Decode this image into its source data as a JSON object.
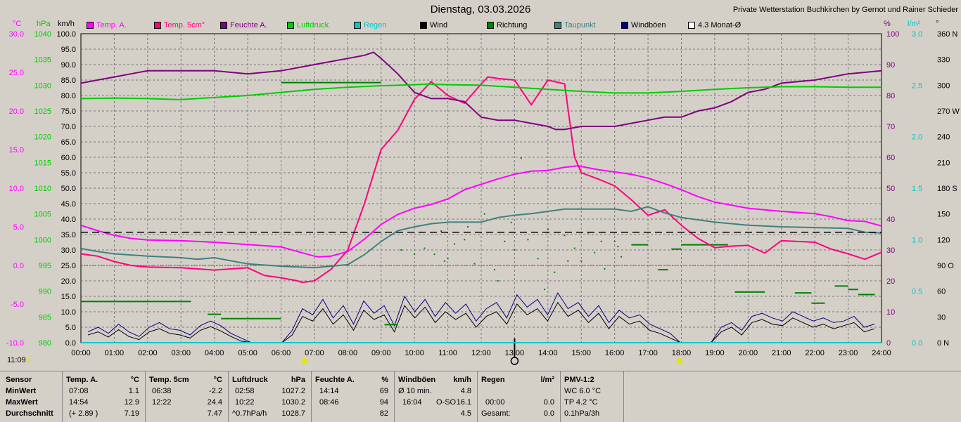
{
  "header": {
    "title": "Dienstag, 03.03.2026",
    "credit": "Private Wetterstation Buchkirchen by Gernot und Rainer Schieder",
    "time_now": "11:09"
  },
  "legend": [
    {
      "label": "Temp. A.",
      "color": "#ff00ff"
    },
    {
      "label": "Temp. 5cm°",
      "color": "#ff0080"
    },
    {
      "label": "Feuchte A.",
      "color": "#800080"
    },
    {
      "label": "Luftdruck",
      "color": "#00cc00"
    },
    {
      "label": "Regen",
      "color": "#00c8c8"
    },
    {
      "label": "Wind",
      "color": "#000000"
    },
    {
      "label": "Richtung",
      "color": "#008000"
    },
    {
      "label": "Taupunkt",
      "color": "#408080"
    },
    {
      "label": "Windböen",
      "color": "#000080"
    },
    {
      "label": "4.3 Monat-Ø",
      "color": "#ffffff"
    }
  ],
  "axes": {
    "temp": {
      "unit": "°C",
      "ticks": [
        "30.0",
        "25.0",
        "20.0",
        "15.0",
        "10.0",
        "5.0",
        "0.0",
        "-5.0",
        "-10.0"
      ],
      "color": "#ff00ff"
    },
    "pressure": {
      "unit": "hPa",
      "ticks": [
        "1040",
        "1035",
        "1030",
        "1025",
        "1020",
        "1015",
        "1010",
        "1005",
        "1000",
        "995",
        "990",
        "985",
        "980"
      ],
      "color": "#00cc00"
    },
    "wind": {
      "unit": "km/h",
      "ticks": [
        "100.0",
        "95.0",
        "90.0",
        "85.0",
        "80.0",
        "75.0",
        "70.0",
        "65.0",
        "60.0",
        "55.0",
        "50.0",
        "45.0",
        "40.0",
        "35.0",
        "30.0",
        "25.0",
        "20.0",
        "15.0",
        "10.0",
        "5.0",
        "0.0"
      ]
    },
    "humidity": {
      "unit": "%",
      "ticks": [
        "100",
        "90",
        "80",
        "70",
        "60",
        "50",
        "40",
        "30",
        "20",
        "10",
        "0"
      ],
      "color": "#800080"
    },
    "rain": {
      "unit": "l/m²",
      "ticks": [
        "3.0",
        "2.5",
        "2.0",
        "1.5",
        "1.0",
        "0.5",
        "0.0"
      ],
      "color": "#00c8c8"
    },
    "direction": {
      "unit": "°",
      "ticks": [
        "360 N",
        "330",
        "300",
        "270 W",
        "240",
        "210",
        "180 S",
        "150",
        "120",
        "90 O",
        "60",
        "30",
        "0 N"
      ]
    },
    "time": [
      "00:00",
      "01:00",
      "02:00",
      "03:00",
      "04:00",
      "05:00",
      "06:00",
      "07:00",
      "08:00",
      "09:00",
      "10:00",
      "11:00",
      "12:00",
      "13:00",
      "14:00",
      "15:00",
      "16:00",
      "17:00",
      "18:00",
      "19:00",
      "20:00",
      "21:00",
      "22:00",
      "23:00",
      "24:00"
    ]
  },
  "chart_data": {
    "type": "line",
    "x_unit": "hour",
    "series": [
      {
        "name": "Temp. A.",
        "axis": "temp",
        "color": "#ff00ff",
        "x": [
          0,
          0.5,
          1,
          1.5,
          2,
          3,
          4,
          5,
          6,
          7,
          7.13,
          7.5,
          8,
          8.5,
          9,
          9.5,
          10,
          10.5,
          11,
          11.5,
          12,
          12.5,
          13,
          13.5,
          14,
          14.5,
          14.9,
          15.5,
          16,
          16.5,
          17,
          17.5,
          18,
          18.5,
          19,
          19.5,
          20,
          21,
          22,
          22.5,
          23,
          23.5,
          24
        ],
        "y": [
          5.2,
          4.5,
          3.9,
          3.5,
          3.3,
          3.2,
          3.0,
          2.7,
          2.4,
          1.2,
          1.1,
          1.2,
          1.8,
          3.4,
          5.3,
          6.6,
          7.4,
          7.9,
          8.6,
          9.8,
          10.5,
          11.2,
          11.8,
          12.2,
          12.3,
          12.7,
          12.9,
          12.4,
          12.1,
          11.8,
          11.3,
          10.6,
          9.8,
          8.9,
          8.2,
          7.8,
          7.4,
          7.0,
          6.7,
          6.3,
          5.8,
          5.7,
          5.1
        ]
      },
      {
        "name": "Temp. 5cm°",
        "axis": "temp",
        "color": "#ff0080",
        "x": [
          0,
          0.5,
          1,
          1.5,
          2,
          3,
          4,
          5,
          5.5,
          6,
          6.5,
          6.63,
          7,
          7.5,
          8,
          8.5,
          9,
          9.5,
          10,
          10.5,
          11,
          11.5,
          12,
          12.2,
          12.5,
          13,
          13.5,
          14,
          14.5,
          14.8,
          15,
          15.5,
          16,
          16.5,
          17,
          17.5,
          18,
          18.5,
          19,
          19.5,
          20,
          20.5,
          21,
          22,
          22.5,
          23,
          23.5,
          24
        ],
        "y": [
          1.5,
          1.2,
          0.5,
          0,
          -0.2,
          -0.3,
          -0.6,
          -0.3,
          -1.3,
          -1.6,
          -2.0,
          -2.2,
          -2.0,
          -0.5,
          2.0,
          8.0,
          15.0,
          17.5,
          21.5,
          23.8,
          22.0,
          21.0,
          23.5,
          24.4,
          24.2,
          24.0,
          20.8,
          24.0,
          23.5,
          14.0,
          12.0,
          11.2,
          10.3,
          8.5,
          6.5,
          7.2,
          5.2,
          3.5,
          2.3,
          2.5,
          2.6,
          1.6,
          3.2,
          3.0,
          2.1,
          1.5,
          0.8,
          1.7
        ]
      },
      {
        "name": "Feuchte A.",
        "axis": "humidity",
        "color": "#800080",
        "x": [
          0,
          0.5,
          1,
          1.5,
          2,
          3,
          4,
          5,
          6,
          7,
          8,
          8.5,
          8.77,
          9,
          9.5,
          10,
          10.5,
          11,
          11.5,
          12,
          12.5,
          13,
          13.5,
          14,
          14.23,
          14.5,
          15,
          15.5,
          16,
          16.5,
          17,
          17.5,
          18,
          18.5,
          19,
          19.5,
          20,
          20.5,
          21,
          22,
          23,
          24
        ],
        "y": [
          84,
          85,
          86,
          87,
          88,
          88,
          88,
          87,
          88,
          90,
          92,
          93,
          94,
          92,
          87,
          81,
          79,
          79,
          78,
          73,
          72,
          72,
          71,
          70,
          69,
          69,
          70,
          70,
          70,
          71,
          72,
          73,
          73,
          75,
          76,
          78,
          81,
          82,
          84,
          85,
          87,
          88
        ]
      },
      {
        "name": "Luftdruck",
        "axis": "pressure",
        "color": "#00cc00",
        "x": [
          0,
          1,
          2,
          2.97,
          4,
          5,
          6,
          7,
          8,
          9,
          10,
          10.37,
          11,
          12,
          13,
          14,
          15,
          16,
          17,
          18,
          19,
          20,
          21,
          22,
          23,
          24
        ],
        "y": [
          1027.4,
          1027.5,
          1027.4,
          1027.2,
          1027.6,
          1028.0,
          1028.6,
          1029.2,
          1029.6,
          1029.9,
          1030.1,
          1030.2,
          1030.1,
          1030.0,
          1029.6,
          1029.2,
          1028.8,
          1028.5,
          1028.5,
          1028.8,
          1029.2,
          1029.5,
          1029.7,
          1029.7,
          1029.6,
          1029.6
        ]
      },
      {
        "name": "Taupunkt",
        "axis": "temp",
        "color": "#408080",
        "x": [
          0,
          0.5,
          1,
          2,
          3,
          3.5,
          4,
          5,
          6,
          7,
          8,
          8.5,
          9,
          9.5,
          10,
          10.5,
          11,
          12,
          12.5,
          13,
          13.5,
          14,
          14.5,
          15,
          16,
          16.5,
          17,
          17.5,
          18,
          19,
          20,
          21,
          22,
          23,
          23.5,
          24
        ],
        "y": [
          2.2,
          1.8,
          1.5,
          1.2,
          1.0,
          0.8,
          1.0,
          0.2,
          -0.1,
          -0.3,
          0.1,
          1.4,
          3.1,
          4.5,
          5.0,
          5.4,
          5.6,
          5.6,
          6.2,
          6.5,
          6.7,
          7.0,
          7.3,
          7.3,
          7.3,
          7.0,
          7.6,
          6.8,
          6.2,
          5.6,
          5.2,
          5.0,
          4.9,
          4.8,
          4.3,
          4.2
        ]
      },
      {
        "name": "4.3 Monat-Ø",
        "axis": "temp",
        "color": "#000000",
        "x": [
          0,
          24
        ],
        "y": [
          4.3,
          4.3
        ]
      }
    ],
    "wind": [
      2.5,
      3.5,
      1.8,
      4.2,
      2.0,
      1.0,
      3.5,
      4.5,
      3.0,
      2.5,
      1.5,
      4.0,
      5.2,
      3.8,
      2.0,
      0.5,
      0,
      0,
      0,
      0,
      2.5,
      8.5,
      7.0,
      11.0,
      6.0,
      9.0,
      4.0,
      10.5,
      7.5,
      9.0,
      3.5,
      12.0,
      8.0,
      11.5,
      6.5,
      10.0,
      7.5,
      9.5,
      5.0,
      8.5,
      10.0,
      6.0,
      12.5,
      9.0,
      11.0,
      7.0,
      13.0,
      8.5,
      10.5,
      6.5,
      9.5,
      4.5,
      8.5,
      6.0,
      7.0,
      4.0,
      3.0,
      1.5,
      0,
      0,
      0,
      0,
      3.5,
      5.0,
      2.5,
      6.5,
      7.5,
      6.0,
      5.5,
      8.0,
      6.5,
      5.0,
      6.0,
      4.5,
      5.5,
      6.5,
      3.5,
      4.5
    ],
    "gusts": [
      3.5,
      5.0,
      3.0,
      6.0,
      3.5,
      2.0,
      5.0,
      6.5,
      4.5,
      4.0,
      2.5,
      5.5,
      7.0,
      5.5,
      3.0,
      1.5,
      0,
      0,
      0,
      0,
      4.0,
      11.0,
      9.0,
      14.0,
      8.0,
      12.0,
      6.0,
      13.5,
      9.5,
      12.0,
      5.5,
      15.0,
      10.0,
      14.0,
      8.5,
      13.0,
      9.5,
      12.5,
      7.0,
      11.0,
      13.0,
      8.0,
      15.5,
      11.5,
      14.0,
      9.0,
      16.1,
      11.0,
      13.0,
      8.5,
      12.0,
      6.5,
      10.5,
      8.0,
      9.0,
      6.0,
      4.5,
      3.0,
      0,
      0,
      0,
      0,
      5.0,
      6.5,
      4.0,
      8.5,
      9.5,
      8.0,
      7.0,
      10.0,
      8.5,
      7.0,
      8.0,
      6.5,
      7.0,
      8.5,
      5.0,
      6.0
    ],
    "direction_segments": [
      {
        "from": 0.0,
        "to": 3.3,
        "deg": 48
      },
      {
        "from": 3.8,
        "to": 4.2,
        "deg": 33
      },
      {
        "from": 4.2,
        "to": 6.0,
        "deg": 28
      },
      {
        "from": 6.0,
        "to": 9.0,
        "deg": 303
      },
      {
        "from": 9.1,
        "to": 9.5,
        "deg": 21
      },
      {
        "from": 16.5,
        "to": 17.0,
        "deg": 114
      },
      {
        "from": 17.3,
        "to": 17.6,
        "deg": 85
      },
      {
        "from": 17.7,
        "to": 18.0,
        "deg": 109
      },
      {
        "from": 18.0,
        "to": 19.4,
        "deg": 114
      },
      {
        "from": 19.6,
        "to": 20.5,
        "deg": 59
      },
      {
        "from": 21.4,
        "to": 21.9,
        "deg": 58
      },
      {
        "from": 21.9,
        "to": 22.3,
        "deg": 46
      },
      {
        "from": 22.6,
        "to": 23.0,
        "deg": 66
      },
      {
        "from": 23.0,
        "to": 23.3,
        "deg": 62
      },
      {
        "from": 23.3,
        "to": 23.8,
        "deg": 56
      }
    ],
    "direction_points": [
      [
        10.0,
        103
      ],
      [
        10.3,
        110
      ],
      [
        10.6,
        103
      ],
      [
        10.9,
        95
      ],
      [
        11.2,
        115
      ],
      [
        11.5,
        120
      ],
      [
        11.8,
        92
      ],
      [
        12.1,
        150
      ],
      [
        12.4,
        85
      ],
      [
        12.7,
        118
      ],
      [
        13.0,
        108
      ],
      [
        13.2,
        215
      ],
      [
        13.4,
        120
      ],
      [
        13.7,
        98
      ],
      [
        14.0,
        132
      ],
      [
        14.2,
        82
      ],
      [
        14.5,
        125
      ],
      [
        14.8,
        110
      ],
      [
        15.0,
        95
      ],
      [
        15.2,
        128
      ],
      [
        15.4,
        105
      ],
      [
        15.7,
        86
      ],
      [
        16.0,
        118
      ],
      [
        16.2,
        100
      ],
      [
        12.5,
        72
      ],
      [
        11.0,
        98
      ],
      [
        13.9,
        62
      ],
      [
        15.6,
        118
      ],
      [
        10.8,
        130
      ],
      [
        12.9,
        140
      ],
      [
        14.6,
        95
      ],
      [
        11.6,
        135
      ],
      [
        9.6,
        108
      ],
      [
        16.1,
        112
      ]
    ],
    "rain": {
      "x": [
        0,
        24
      ],
      "y": [
        0,
        0
      ]
    },
    "zero_line_temp": 0.0
  },
  "stats": {
    "col_sensor": {
      "h": "Sensor",
      "r1": "MinWert",
      "r2": "MaxWert",
      "r3": "Durchschnitt"
    },
    "col_temp_a": {
      "h": "Temp. A.",
      "u": "°C",
      "t1": "07:08",
      "v1": "1.1",
      "t2": "14:54",
      "v2": "12.9",
      "t3": "(+ 2.89 )",
      "v3": "7.19"
    },
    "col_temp_5cm": {
      "h": "Temp. 5cm",
      "u": "°C",
      "t1": "06:38",
      "v1": "-2.2",
      "t2": "12:22",
      "v2": "24.4",
      "v3": "7.47"
    },
    "col_pressure": {
      "h": "Luftdruck",
      "u": "hPa",
      "t1": "02:58",
      "v1": "1027.2",
      "t2": "10:22",
      "v2": "1030.2",
      "t3": "^0.7hPa/h",
      "v3": "1028.7"
    },
    "col_humidity": {
      "h": "Feuchte A.",
      "u": "%",
      "t1": "14:14",
      "v1": "69",
      "t2": "08:46",
      "v2": "94",
      "v3": "82"
    },
    "col_gusts": {
      "h": "Windböen",
      "u": "km/h",
      "t1": "Ø 10 min.",
      "v1": "4.8",
      "t2": "16:04",
      "d2": "O-SO",
      "v2": "16.1",
      "v3": "4.5"
    },
    "col_rain": {
      "h": "Regen",
      "u": "l/m²",
      "v1": "",
      "t2": "00:00",
      "v2": "0.0",
      "t3": "Gesamt:",
      "v3": "0.0"
    },
    "col_pmv": {
      "h": "PMV-1:2",
      "r1": "WC 6.0 °C",
      "r2": "TP 4.2 °C",
      "r3": "0.1hPa/3h"
    }
  }
}
